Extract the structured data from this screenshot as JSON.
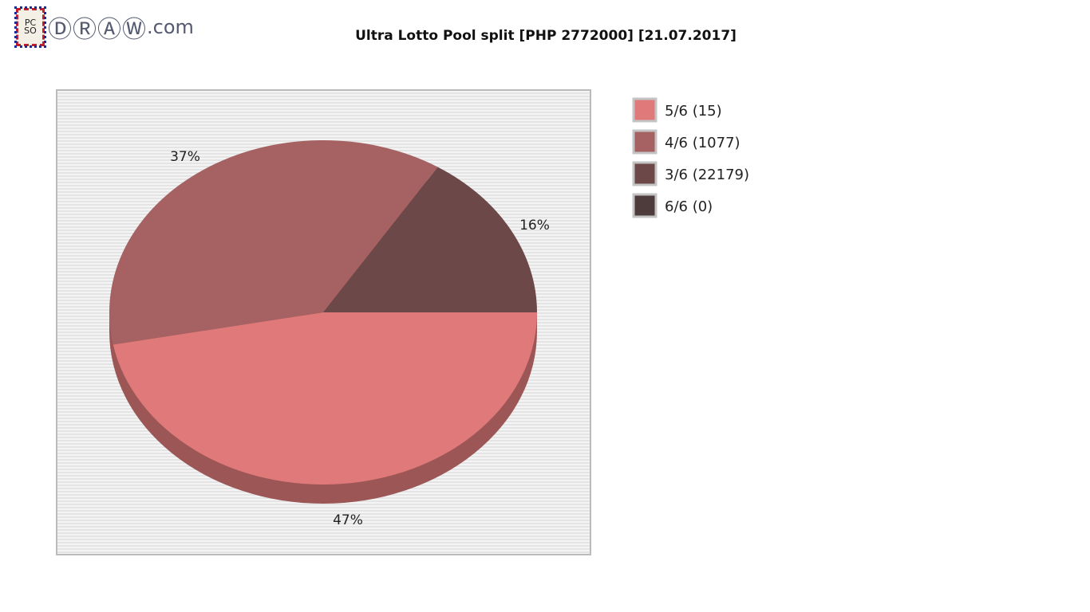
{
  "logo": {
    "badge": "PCSO",
    "text": "DRAW",
    ".com": ".com"
  },
  "chart_data": {
    "type": "pie",
    "title": "Ultra Lotto Pool split [PHP 2772000] [21.07.2017]",
    "slices": [
      {
        "label": "5/6 (15)",
        "percent": 47,
        "percent_label": "47%",
        "color": "#e07a7a"
      },
      {
        "label": "4/6 (1077)",
        "percent": 37,
        "percent_label": "37%",
        "color": "#a66262"
      },
      {
        "label": "3/6 (22179)",
        "percent": 16,
        "percent_label": "16%",
        "color": "#6c4848"
      },
      {
        "label": "6/6 (0)",
        "percent": 0,
        "percent_label": "",
        "color": "#4e3c3c"
      }
    ],
    "legend_position": "right",
    "style": "3d"
  }
}
